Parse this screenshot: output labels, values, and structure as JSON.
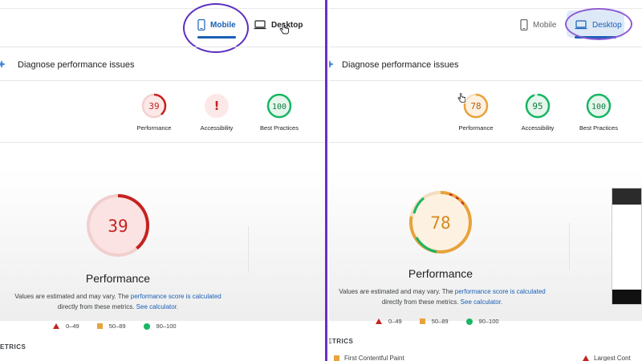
{
  "left": {
    "tabs": {
      "mobile": "Mobile",
      "desktop": "Desktop"
    },
    "heading": "Diagnose performance issues",
    "scores": [
      {
        "value": "39",
        "label": "Performance"
      },
      {
        "value": "!",
        "label": "Accessibility"
      },
      {
        "value": "100",
        "label": "Best Practices"
      }
    ],
    "main_score": "39",
    "main_label": "Performance",
    "note": {
      "pre": "Values are estimated and may vary. The ",
      "link1": "performance score is calculated",
      "mid": "directly from these metrics. ",
      "link2": "See calculator."
    },
    "legend": [
      "0–49",
      "50–89",
      "90–100"
    ],
    "metrics_label": "ETRICS"
  },
  "right": {
    "tabs": {
      "mobile": "Mobile",
      "desktop": "Desktop"
    },
    "heading": "Diagnose performance issues",
    "scores": [
      {
        "value": "78",
        "label": "Performance"
      },
      {
        "value": "95",
        "label": "Accessibility"
      },
      {
        "value": "100",
        "label": "Best Practices"
      }
    ],
    "main_score": "78",
    "main_label": "Performance",
    "note": {
      "pre": "Values are estimated and may vary. The ",
      "link1": "performance score is calculated",
      "mid": "directly from these metrics. ",
      "link2": "See calculator."
    },
    "legend": [
      "0–49",
      "50–89",
      "90–100"
    ],
    "metrics_label": "ETRICS",
    "bottom_left": "First Contentful Paint",
    "bottom_right": "Largest Cont"
  },
  "colors": {
    "fail": "#c5221f",
    "average": "#e8a33c",
    "pass": "#18b663",
    "link": "#1a5fb4",
    "annotation": "#5b2fc0"
  }
}
